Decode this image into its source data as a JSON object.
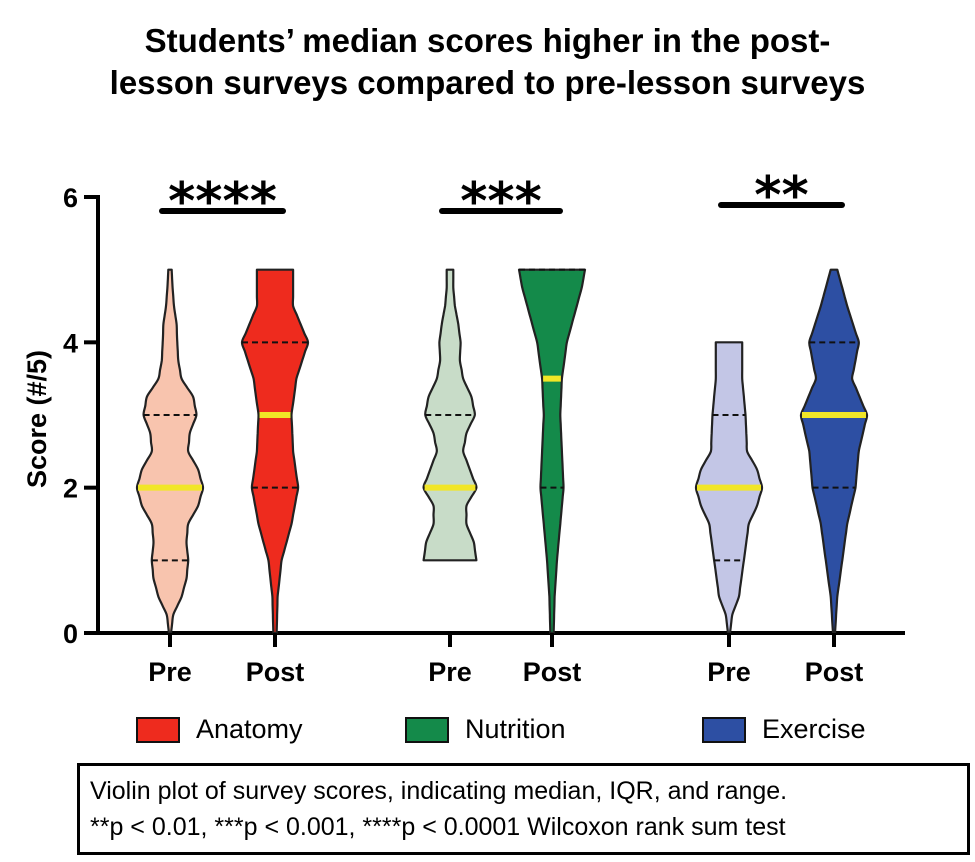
{
  "chart_data": {
    "type": "violin",
    "title_lines": [
      "Students’ median scores higher in the post-",
      "lesson surveys compared to pre-lesson surveys"
    ],
    "ylabel": "Score (#/5)",
    "ylim": [
      0,
      6
    ],
    "yticks": [
      0,
      2,
      4,
      6
    ],
    "groups": [
      {
        "name": "Anatomy",
        "significance": "****",
        "violins": [
          {
            "label": "Pre",
            "fill": "#f8c4ae",
            "min": 0,
            "max": 5,
            "q1": 1,
            "median": 2,
            "q3": 3,
            "density": [
              [
                0,
                0.03
              ],
              [
                0.25,
                0.1
              ],
              [
                0.5,
                0.35
              ],
              [
                0.75,
                0.5
              ],
              [
                1,
                0.55
              ],
              [
                1.25,
                0.5
              ],
              [
                1.5,
                0.55
              ],
              [
                1.75,
                0.85
              ],
              [
                2,
                1.0
              ],
              [
                2.25,
                0.85
              ],
              [
                2.5,
                0.55
              ],
              [
                2.75,
                0.6
              ],
              [
                3,
                0.8
              ],
              [
                3.25,
                0.7
              ],
              [
                3.5,
                0.35
              ],
              [
                3.75,
                0.25
              ],
              [
                4,
                0.22
              ],
              [
                4.25,
                0.2
              ],
              [
                4.5,
                0.12
              ],
              [
                4.75,
                0.08
              ],
              [
                5,
                0.05
              ]
            ]
          },
          {
            "label": "Post",
            "fill": "#ee2b1e",
            "min": 0,
            "max": 5,
            "q1": 2,
            "median": 3,
            "q3": 4,
            "density": [
              [
                0,
                0.05
              ],
              [
                0.5,
                0.08
              ],
              [
                1,
                0.2
              ],
              [
                1.5,
                0.5
              ],
              [
                2,
                0.7
              ],
              [
                2.5,
                0.55
              ],
              [
                3,
                0.5
              ],
              [
                3.5,
                0.65
              ],
              [
                4,
                1.0
              ],
              [
                4.5,
                0.55
              ],
              [
                5,
                0.55
              ]
            ]
          }
        ]
      },
      {
        "name": "Nutrition",
        "significance": "***",
        "violins": [
          {
            "label": "Pre",
            "fill": "#c8dcc8",
            "min": 1,
            "max": 5,
            "q1": 2,
            "median": 2,
            "q3": 3,
            "density": [
              [
                1,
                0.8
              ],
              [
                1.25,
                0.72
              ],
              [
                1.5,
                0.5
              ],
              [
                1.75,
                0.5
              ],
              [
                2,
                0.8
              ],
              [
                2.25,
                0.6
              ],
              [
                2.5,
                0.4
              ],
              [
                2.75,
                0.5
              ],
              [
                3,
                0.75
              ],
              [
                3.25,
                0.65
              ],
              [
                3.5,
                0.4
              ],
              [
                3.75,
                0.3
              ],
              [
                4,
                0.32
              ],
              [
                4.25,
                0.25
              ],
              [
                4.5,
                0.15
              ],
              [
                4.75,
                0.1
              ],
              [
                5,
                0.1
              ]
            ]
          },
          {
            "label": "Post",
            "fill": "#148a4a",
            "min": 0,
            "max": 5,
            "q1": 2,
            "median": 3.5,
            "q3": 5,
            "density": [
              [
                0,
                0.05
              ],
              [
                0.5,
                0.08
              ],
              [
                1,
                0.15
              ],
              [
                1.5,
                0.25
              ],
              [
                2,
                0.35
              ],
              [
                2.5,
                0.3
              ],
              [
                3,
                0.25
              ],
              [
                3.5,
                0.3
              ],
              [
                4,
                0.45
              ],
              [
                4.5,
                0.75
              ],
              [
                4.75,
                0.9
              ],
              [
                5,
                1.0
              ]
            ]
          }
        ]
      },
      {
        "name": "Exercise",
        "significance": "**",
        "violins": [
          {
            "label": "Pre",
            "fill": "#c3c6e6",
            "min": 0,
            "max": 4,
            "q1": 1,
            "median": 2,
            "q3": 3,
            "density": [
              [
                0,
                0.03
              ],
              [
                0.25,
                0.1
              ],
              [
                0.5,
                0.3
              ],
              [
                1,
                0.45
              ],
              [
                1.5,
                0.6
              ],
              [
                1.75,
                0.85
              ],
              [
                2,
                1.0
              ],
              [
                2.25,
                0.85
              ],
              [
                2.5,
                0.55
              ],
              [
                3,
                0.5
              ],
              [
                3.25,
                0.45
              ],
              [
                3.5,
                0.4
              ],
              [
                4,
                0.4
              ]
            ]
          },
          {
            "label": "Post",
            "fill": "#2d4fa3",
            "min": 0,
            "max": 5,
            "q1": 2,
            "median": 3,
            "q3": 4,
            "density": [
              [
                0,
                0.03
              ],
              [
                0.5,
                0.1
              ],
              [
                1,
                0.25
              ],
              [
                1.5,
                0.4
              ],
              [
                2,
                0.65
              ],
              [
                2.5,
                0.75
              ],
              [
                3,
                1.0
              ],
              [
                3.5,
                0.55
              ],
              [
                4,
                0.75
              ],
              [
                4.5,
                0.4
              ],
              [
                5,
                0.1
              ]
            ]
          }
        ]
      }
    ]
  },
  "legend": {
    "items": [
      {
        "label": "Anatomy",
        "color": "#ee2b1e"
      },
      {
        "label": "Nutrition",
        "color": "#148a4a"
      },
      {
        "label": "Exercise",
        "color": "#2d4fa3"
      }
    ]
  },
  "caption": {
    "line1": "Violin plot of survey scores, indicating median, IQR, and range.",
    "line2": "**p < 0.01, ***p < 0.001, ****p < 0.0001 Wilcoxon rank sum test"
  },
  "colors": {
    "median": "#f1e627",
    "axis": "#000000"
  }
}
